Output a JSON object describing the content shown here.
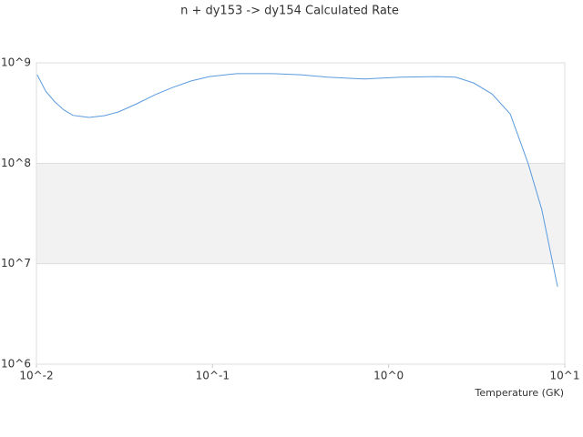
{
  "chart_data": {
    "type": "line",
    "title": "n + dy153 -> dy154 Calculated Rate",
    "x_label": "Temperature (GK)",
    "xscale": "log",
    "yscale": "log",
    "grid": true,
    "alternate_bands": true,
    "xlim": [
      0.01,
      10
    ],
    "ylim": [
      1000000,
      1000000000
    ],
    "xticks": [
      {
        "value": 0.01,
        "label": "10^-2"
      },
      {
        "value": 0.1,
        "label": "10^-1"
      },
      {
        "value": 1,
        "label": "10^0"
      },
      {
        "value": 10,
        "label": "10^1"
      }
    ],
    "yticks": [
      {
        "value": 1000000,
        "label": "10^6"
      },
      {
        "value": 10000000,
        "label": "10^7"
      },
      {
        "value": 100000000,
        "label": "10^8"
      },
      {
        "value": 1000000000,
        "label": "10^9"
      }
    ],
    "x": [
      0.0101,
      0.0113,
      0.0127,
      0.0143,
      0.0161,
      0.0199,
      0.0244,
      0.0292,
      0.037,
      0.047,
      0.0596,
      0.0757,
      0.096,
      0.137,
      0.22,
      0.316,
      0.45,
      0.73,
      1.17,
      1.89,
      2.4,
      3.04,
      3.86,
      4.9,
      6.2,
      7.4,
      9.1
    ],
    "series": [
      {
        "color": "#5b9bde",
        "values": [
          760000000,
          520000000,
          410000000,
          340000000,
          300000000,
          286000000,
          298000000,
          324000000,
          390000000,
          480000000,
          570000000,
          660000000,
          730000000,
          780000000,
          780000000,
          760000000,
          720000000,
          690000000,
          720000000,
          730000000,
          720000000,
          630000000,
          490000000,
          310000000,
          99000000,
          34700000,
          5900000
        ]
      }
    ]
  }
}
